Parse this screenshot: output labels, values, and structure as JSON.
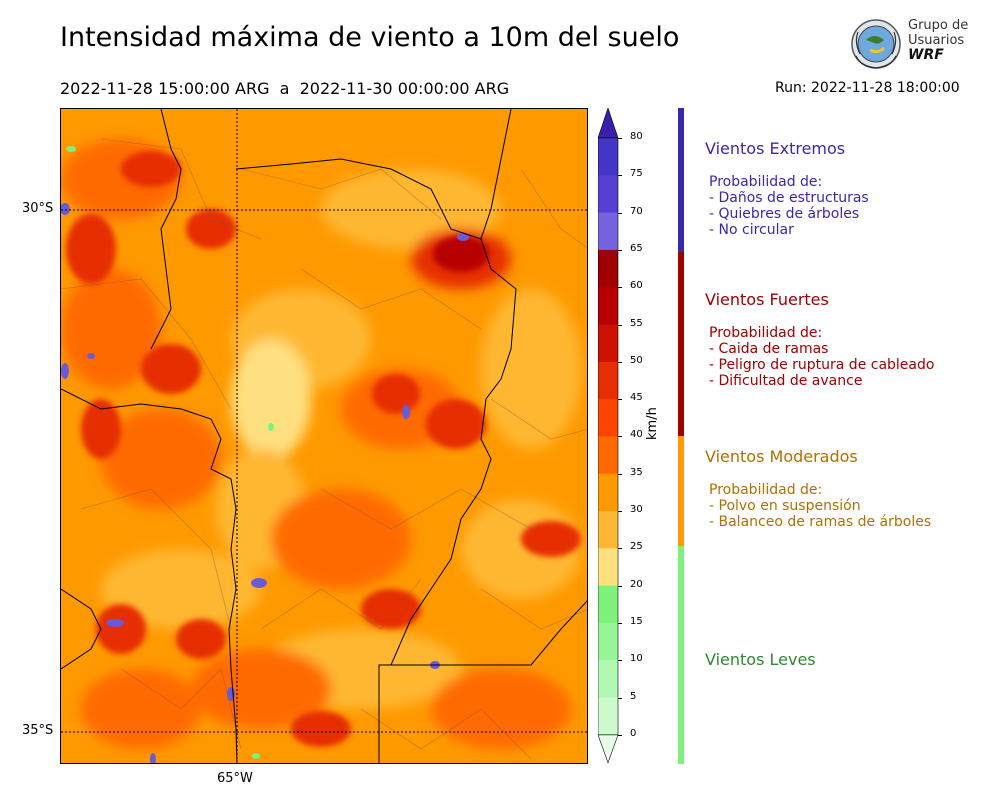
{
  "header": {
    "title": "Intensidad máxima de viento a 10m del suelo",
    "period": "2022-11-28 15:00:00 ARG  a  2022-11-30 00:00:00 ARG",
    "run": "Run: 2022-11-28 18:00:00"
  },
  "logo": {
    "line1": "Grupo de",
    "line2": "Usuarios",
    "line3": "WRF"
  },
  "map": {
    "lat_labels": [
      "30°S",
      "35°S"
    ],
    "lon_labels": [
      "65°W"
    ],
    "colors": {
      "light_yellow": "#ffe080",
      "orange_light": "#ffb733",
      "orange": "#ff9900",
      "orange_red": "#ff6a00",
      "red": "#e62e00",
      "dark_red": "#b80000",
      "maroon": "#a00000",
      "violet": "#6a5ad6",
      "green": "#7cf27c"
    }
  },
  "colorbar": {
    "ticks": [
      "80",
      "75",
      "70",
      "65",
      "60",
      "55",
      "50",
      "45",
      "40",
      "35",
      "30",
      "25",
      "20",
      "15",
      "10",
      "5",
      "0"
    ],
    "unit": "km/h",
    "bin_colors": [
      "#3a1fad",
      "#4535c6",
      "#5640d4",
      "#7563e0",
      "#a00000",
      "#b80000",
      "#cc1100",
      "#e62e00",
      "#ff4400",
      "#ff6a00",
      "#ff9900",
      "#ffb733",
      "#ffe080",
      "#7cf27c",
      "#98f598",
      "#b2f8b2",
      "#ccfacc",
      "#e8fde8"
    ]
  },
  "legend": {
    "categories": [
      {
        "title": "Vientos Extremos",
        "color": "#3a27b0",
        "lines": [
          "Probabilidad de:",
          "- Daños de estructuras",
          "- Quiebres de árboles",
          "- No circular"
        ]
      },
      {
        "title": "Vientos Fuertes",
        "color": "#a00000",
        "lines": [
          "Probabilidad de:",
          "- Caida de ramas",
          "- Peligro de ruptura de cableado",
          "- Dificultad de avance"
        ]
      },
      {
        "title": "Vientos Moderados",
        "color": "#b07000",
        "bar_color": "#ff9900",
        "lines": [
          "Probabilidad de:",
          "- Polvo en suspensión",
          "- Balanceo de ramas de árboles"
        ]
      },
      {
        "title": "Vientos Leves",
        "color": "#2e8a2e",
        "bar_color": "#7cf27c",
        "lines": []
      }
    ]
  }
}
